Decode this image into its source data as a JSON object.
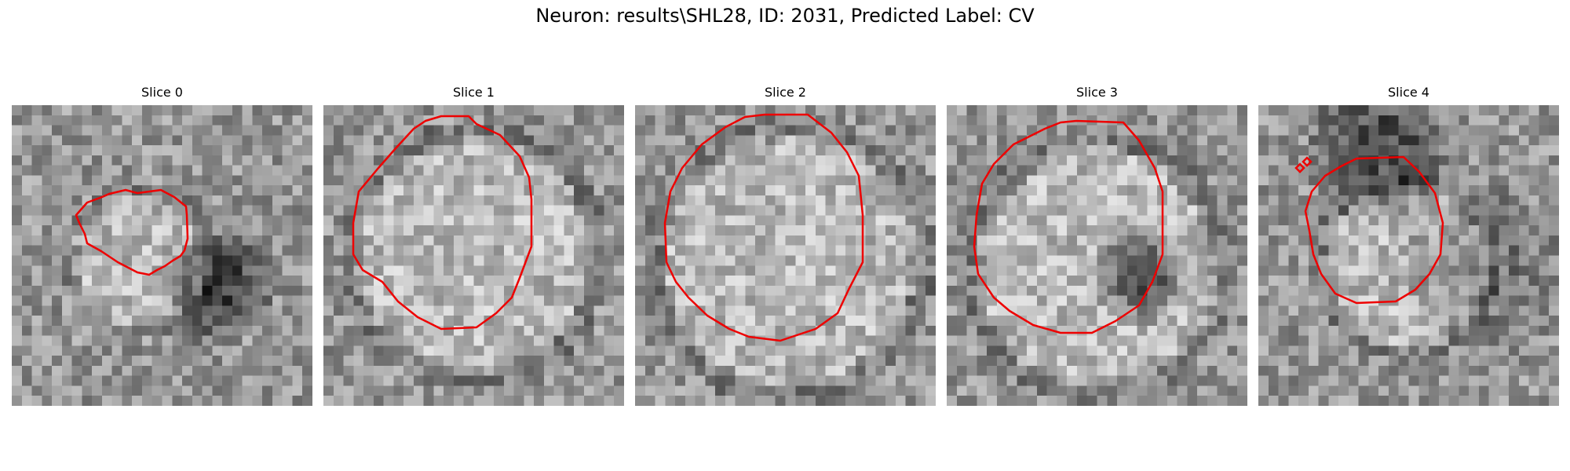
{
  "figure": {
    "title": "Neuron: results\\SHL28, ID: 2031, Predicted Label: CV"
  },
  "panels": [
    {
      "title": "Slice 0",
      "image": "grayscale-em-patch",
      "dark_blob": "right",
      "contour_color": "#ee0000"
    },
    {
      "title": "Slice 1",
      "image": "grayscale-em-patch",
      "dark_blob": "none",
      "contour_color": "#ee0000"
    },
    {
      "title": "Slice 2",
      "image": "grayscale-em-patch",
      "dark_blob": "none",
      "contour_color": "#ee0000"
    },
    {
      "title": "Slice 3",
      "image": "grayscale-em-patch",
      "dark_blob": "lower-right",
      "contour_color": "#ee0000"
    },
    {
      "title": "Slice 4",
      "image": "grayscale-em-patch",
      "dark_blob": "top",
      "contour_color": "#ee0000"
    }
  ]
}
